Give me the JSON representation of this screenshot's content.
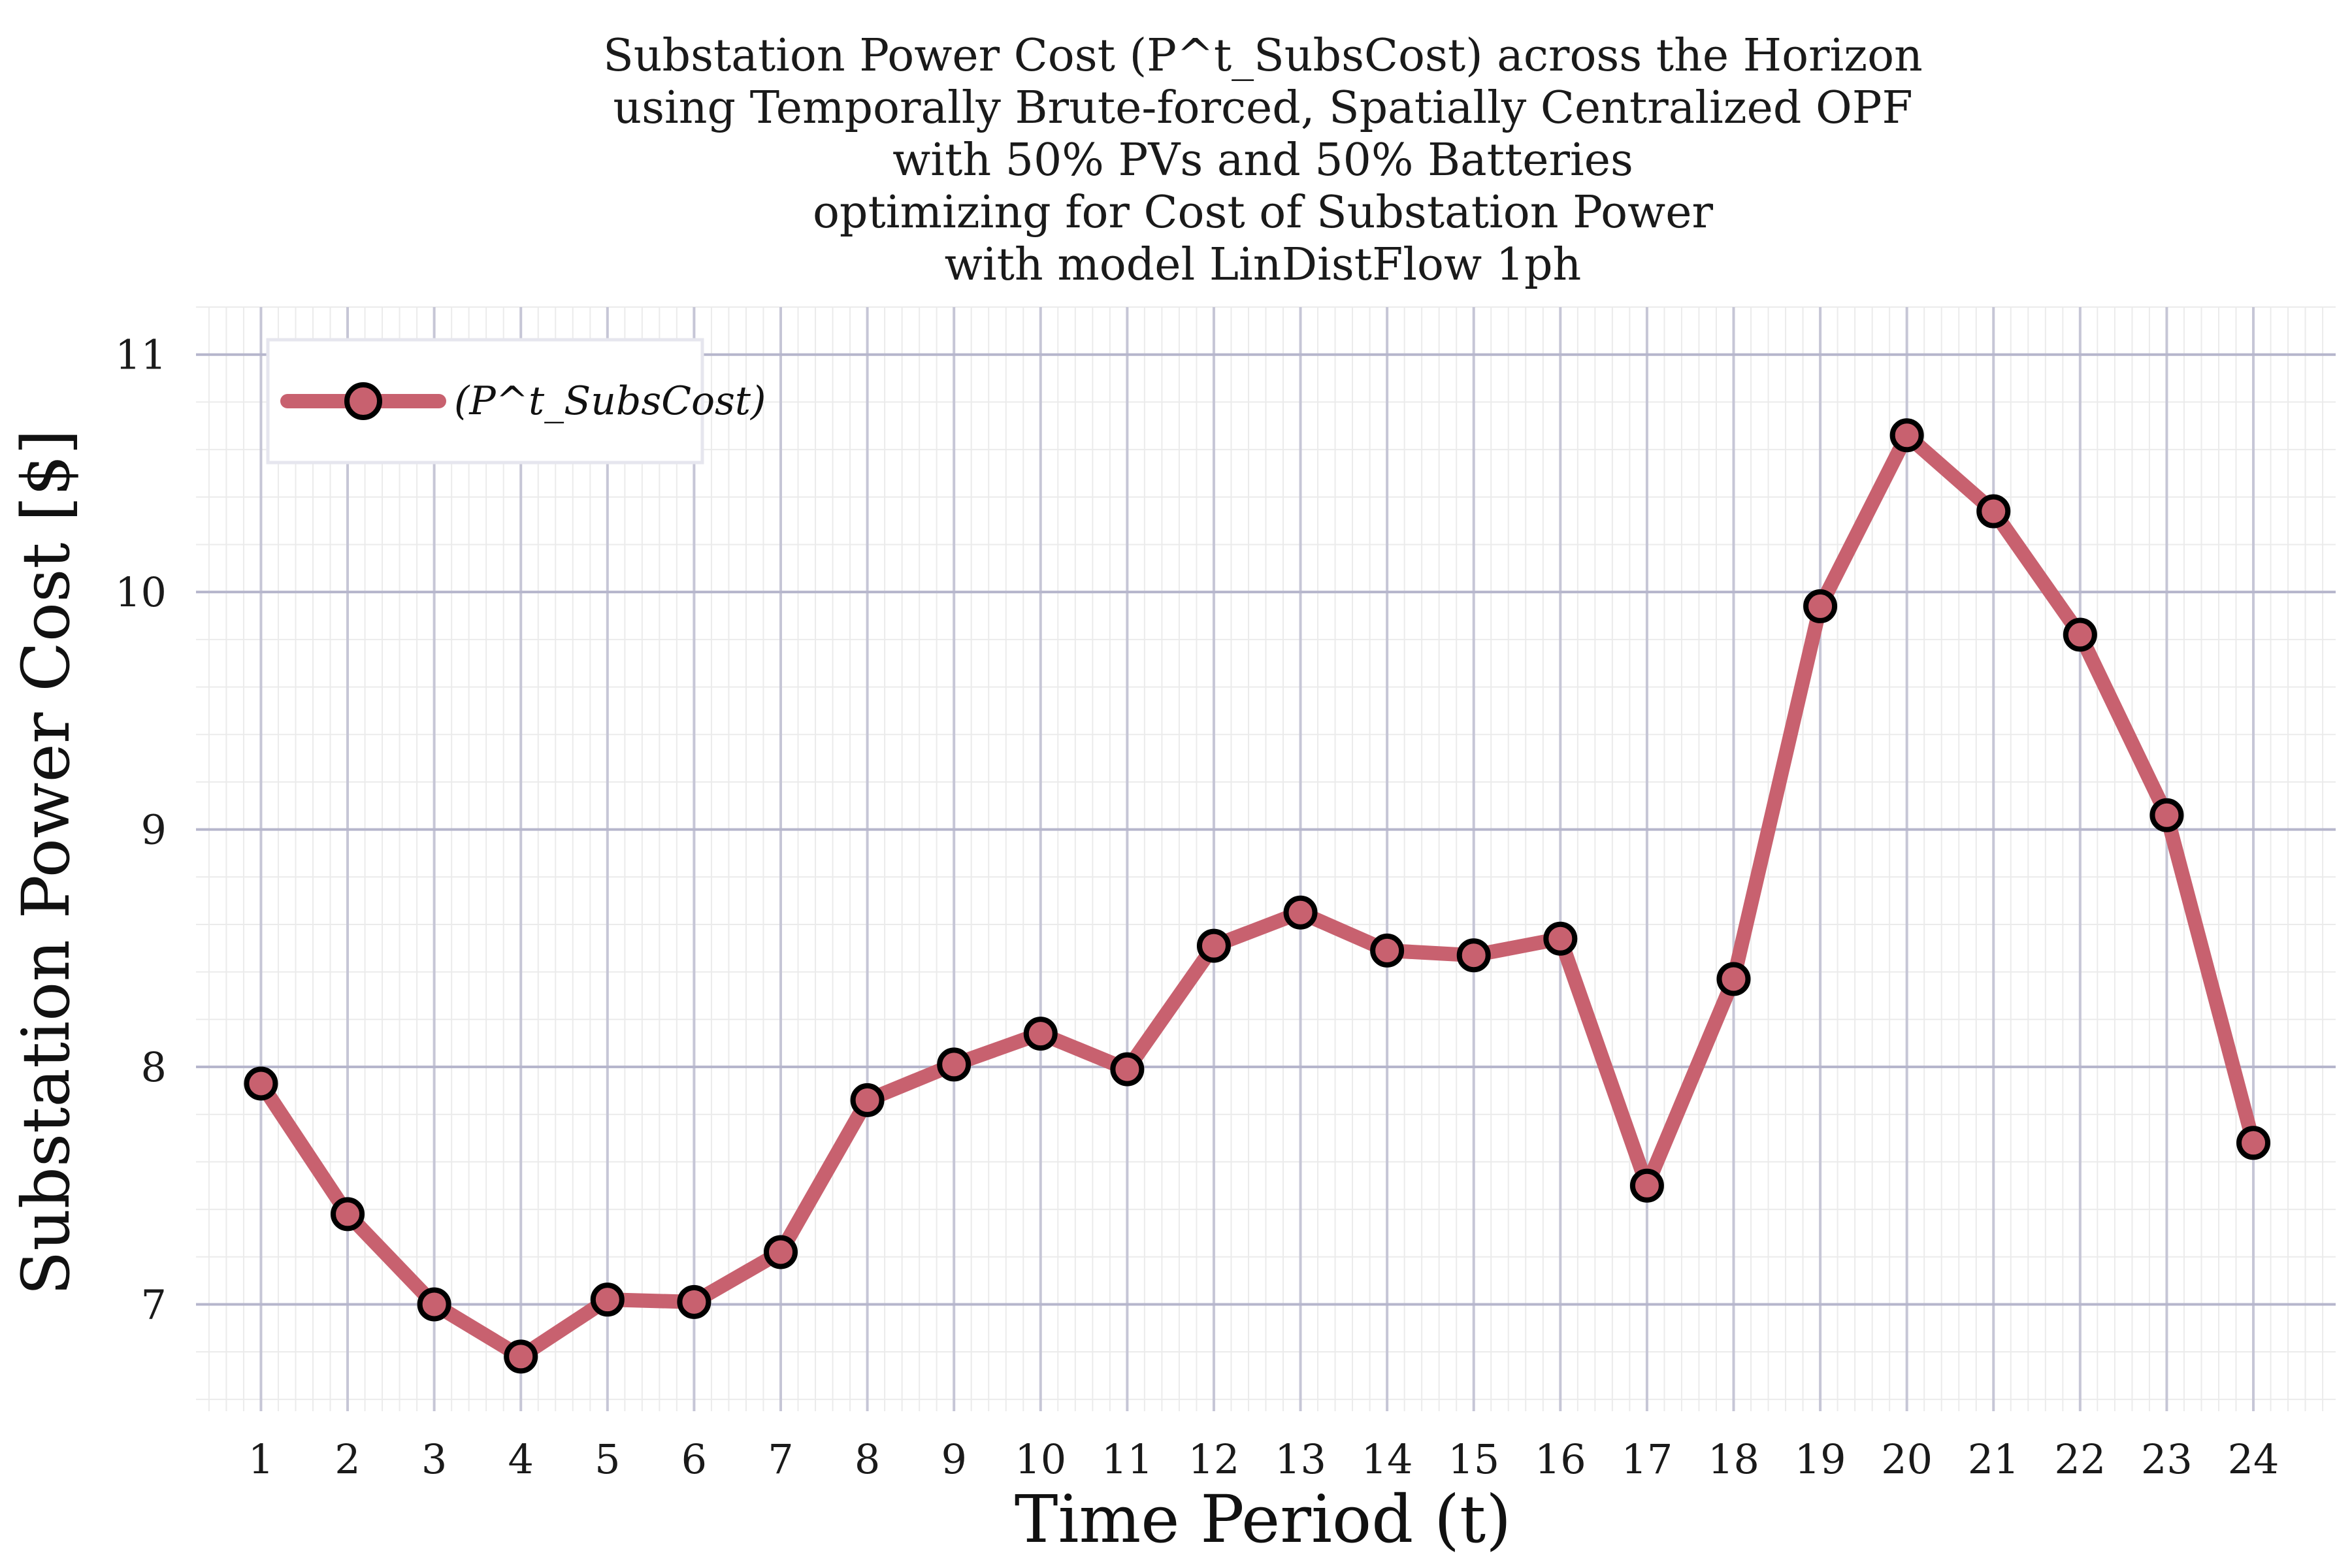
{
  "chart_data": {
    "type": "line",
    "title_lines": [
      "Substation Power Cost (P^t_SubsCost) across the Horizon",
      "using Temporally Brute-forced, Spatially Centralized OPF",
      "with 50% PVs and 50% Batteries",
      "optimizing for Cost of Substation Power",
      "with model LinDistFlow 1ph"
    ],
    "xlabel": "Time Period (t)",
    "ylabel": "Substation Power Cost [$]",
    "x": [
      1,
      2,
      3,
      4,
      5,
      6,
      7,
      8,
      9,
      10,
      11,
      12,
      13,
      14,
      15,
      16,
      17,
      18,
      19,
      20,
      21,
      22,
      23,
      24
    ],
    "x_tick_labels": [
      "1",
      "2",
      "3",
      "4",
      "5",
      "6",
      "7",
      "8",
      "9",
      "10",
      "11",
      "12",
      "13",
      "14",
      "15",
      "16",
      "17",
      "18",
      "19",
      "20",
      "21",
      "22",
      "23",
      "24"
    ],
    "y_ticks": [
      7,
      8,
      9,
      10,
      11
    ],
    "y_tick_labels": [
      "7",
      "8",
      "9",
      "10",
      "11"
    ],
    "xlim": [
      0.25,
      24.95
    ],
    "ylim": [
      6.55,
      11.2
    ],
    "grid": true,
    "legend_position": "top-left",
    "series": [
      {
        "name": "(P^t_SubsCost)",
        "color": "#c8616f",
        "marker_edge_color": "#000000",
        "values": [
          7.93,
          7.38,
          7.0,
          6.78,
          7.02,
          7.01,
          7.22,
          7.86,
          8.01,
          8.14,
          7.99,
          8.51,
          8.65,
          8.49,
          8.47,
          8.54,
          7.5,
          8.37,
          9.94,
          10.66,
          10.34,
          9.82,
          9.06,
          7.68
        ]
      }
    ]
  }
}
